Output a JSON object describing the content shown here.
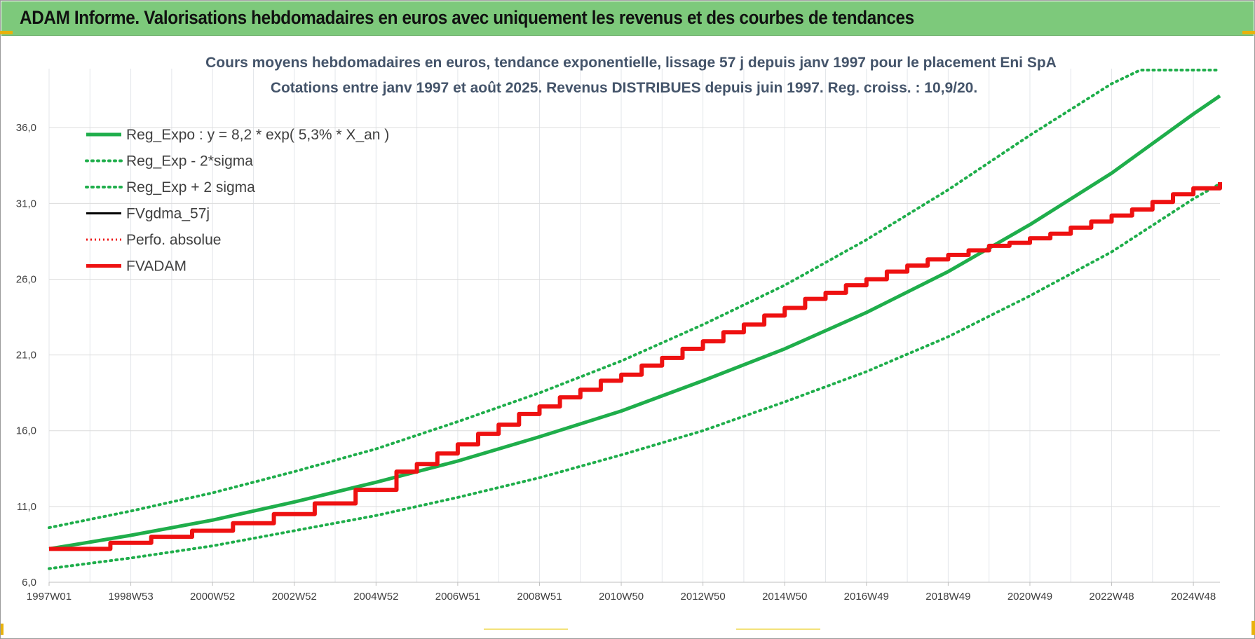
{
  "banner": {
    "title": "ADAM Informe. Valorisations hebdomadaires en euros avec uniquement les revenus et des courbes de tendances"
  },
  "colors": {
    "banner_bg": "#7dc97b",
    "trend_green": "#1fae4b",
    "red": "#ee1111",
    "black": "#000000",
    "accent_corner": "#e8b20c"
  },
  "chart_data": {
    "type": "line",
    "title": "Cours moyens hebdomadaires en euros, tendance exponentielle, lissage 57 j depuis janv 1997 pour le placement Eni SpA",
    "subtitle": "Cotations entre janv 1997 et août 2025. Revenus DISTRIBUES depuis juin 1997. Reg. croiss. : 10,9/20.",
    "xlabel": "",
    "ylabel": "",
    "x_tick_labels": [
      "1997W01",
      "1998W53",
      "2000W52",
      "2002W52",
      "2004W52",
      "2006W51",
      "2008W51",
      "2010W50",
      "2012W50",
      "2014W50",
      "2016W49",
      "2018W49",
      "2020W49",
      "2022W48",
      "2024W48"
    ],
    "x_tick_years": [
      1997.0,
      1999.0,
      2001.0,
      2003.0,
      2005.0,
      2007.0,
      2009.0,
      2011.0,
      2013.0,
      2015.0,
      2017.0,
      2019.0,
      2021.0,
      2023.0,
      2025.0
    ],
    "y_tick_labels": [
      "6,0",
      "11,0",
      "16,0",
      "21,0",
      "26,0",
      "31,0",
      "36,0"
    ],
    "y_ticks": [
      6,
      11,
      16,
      21,
      26,
      31,
      36
    ],
    "xlim": [
      1997.0,
      2025.65
    ],
    "ylim": [
      6,
      39.8
    ],
    "grid": true,
    "legend_position": "top-left",
    "series": [
      {
        "name": "Reg_Expo : y = 8,2 * exp( 5,3% *  X_an )",
        "style": "solid",
        "color": "#1fae4b",
        "x": [
          1997,
          1999,
          2001,
          2003,
          2005,
          2007,
          2009,
          2011,
          2013,
          2015,
          2017,
          2019,
          2021,
          2023,
          2025,
          2025.65
        ],
        "y": [
          8.2,
          9.1,
          10.1,
          11.3,
          12.6,
          14.0,
          15.6,
          17.3,
          19.3,
          21.4,
          23.8,
          26.5,
          29.6,
          33.0,
          36.9,
          38.1
        ]
      },
      {
        "name": "Reg_Exp - 2*sigma",
        "style": "dotted",
        "color": "#1fae4b",
        "x": [
          1997,
          1999,
          2001,
          2003,
          2005,
          2007,
          2009,
          2011,
          2013,
          2015,
          2017,
          2019,
          2021,
          2023,
          2025,
          2025.65
        ],
        "y": [
          6.9,
          7.6,
          8.4,
          9.4,
          10.4,
          11.6,
          12.9,
          14.4,
          16.0,
          17.9,
          19.9,
          22.2,
          24.9,
          27.8,
          31.3,
          32.3
        ]
      },
      {
        "name": "Reg_Exp + 2 sigma",
        "style": "dotted",
        "color": "#1fae4b",
        "x": [
          1997,
          1999,
          2001,
          2003,
          2005,
          2007,
          2009,
          2011,
          2013,
          2015,
          2017,
          2019,
          2021,
          2023,
          2023.7,
          2025.65
        ],
        "y": [
          9.6,
          10.7,
          11.9,
          13.3,
          14.8,
          16.6,
          18.5,
          20.6,
          23.0,
          25.6,
          28.6,
          31.9,
          35.5,
          38.9,
          39.8,
          39.8
        ]
      },
      {
        "name": "FVgdma_57j",
        "style": "solid",
        "color": "#000000",
        "x": [
          1997,
          1998.5,
          1999.5,
          2000.5,
          2001.5,
          2002.5,
          2003.5,
          2004.5,
          2005.5,
          2006.0,
          2006.5,
          2007.0,
          2007.5,
          2008.0,
          2008.5,
          2009.0,
          2009.5,
          2010.0,
          2010.5,
          2011.0,
          2011.5,
          2012.0,
          2012.5,
          2013.0,
          2013.5,
          2014.0,
          2014.5,
          2015.0,
          2015.5,
          2016.0,
          2016.5,
          2017.0,
          2017.5,
          2018.0,
          2018.5,
          2019.0,
          2019.5,
          2020.0,
          2020.5,
          2021.0,
          2021.5,
          2022.0,
          2022.5,
          2023.0,
          2023.5,
          2024.0,
          2024.5,
          2025.0,
          2025.65
        ],
        "y": [
          8.2,
          8.6,
          9.0,
          9.4,
          9.9,
          10.5,
          11.2,
          12.1,
          13.3,
          13.8,
          14.5,
          15.1,
          15.8,
          16.4,
          17.1,
          17.6,
          18.2,
          18.7,
          19.3,
          19.7,
          20.3,
          20.8,
          21.4,
          21.9,
          22.5,
          23.0,
          23.6,
          24.1,
          24.7,
          25.1,
          25.6,
          26.0,
          26.5,
          26.9,
          27.3,
          27.6,
          27.9,
          28.2,
          28.4,
          28.7,
          29.0,
          29.4,
          29.8,
          30.2,
          30.6,
          31.1,
          31.6,
          32.0,
          32.4
        ]
      },
      {
        "name": "Perfo. absolue",
        "style": "dotted",
        "color": "#ee1111",
        "x": [],
        "y": []
      },
      {
        "name": "FVADAM",
        "style": "solid",
        "color": "#ee1111",
        "x": [
          1997,
          1998.5,
          1999.5,
          2000.5,
          2001.5,
          2002.5,
          2003.5,
          2004.5,
          2005.5,
          2006.0,
          2006.5,
          2007.0,
          2007.5,
          2008.0,
          2008.5,
          2009.0,
          2009.5,
          2010.0,
          2010.5,
          2011.0,
          2011.5,
          2012.0,
          2012.5,
          2013.0,
          2013.5,
          2014.0,
          2014.5,
          2015.0,
          2015.5,
          2016.0,
          2016.5,
          2017.0,
          2017.5,
          2018.0,
          2018.5,
          2019.0,
          2019.5,
          2020.0,
          2020.5,
          2021.0,
          2021.5,
          2022.0,
          2022.5,
          2023.0,
          2023.5,
          2024.0,
          2024.5,
          2025.0,
          2025.65
        ],
        "y": [
          8.2,
          8.6,
          9.0,
          9.4,
          9.9,
          10.5,
          11.2,
          12.1,
          13.3,
          13.8,
          14.5,
          15.1,
          15.8,
          16.4,
          17.1,
          17.6,
          18.2,
          18.7,
          19.3,
          19.7,
          20.3,
          20.8,
          21.4,
          21.9,
          22.5,
          23.0,
          23.6,
          24.1,
          24.7,
          25.1,
          25.6,
          26.0,
          26.5,
          26.9,
          27.3,
          27.6,
          27.9,
          28.2,
          28.4,
          28.7,
          29.0,
          29.4,
          29.8,
          30.2,
          30.6,
          31.1,
          31.6,
          32.0,
          32.4
        ]
      }
    ]
  }
}
